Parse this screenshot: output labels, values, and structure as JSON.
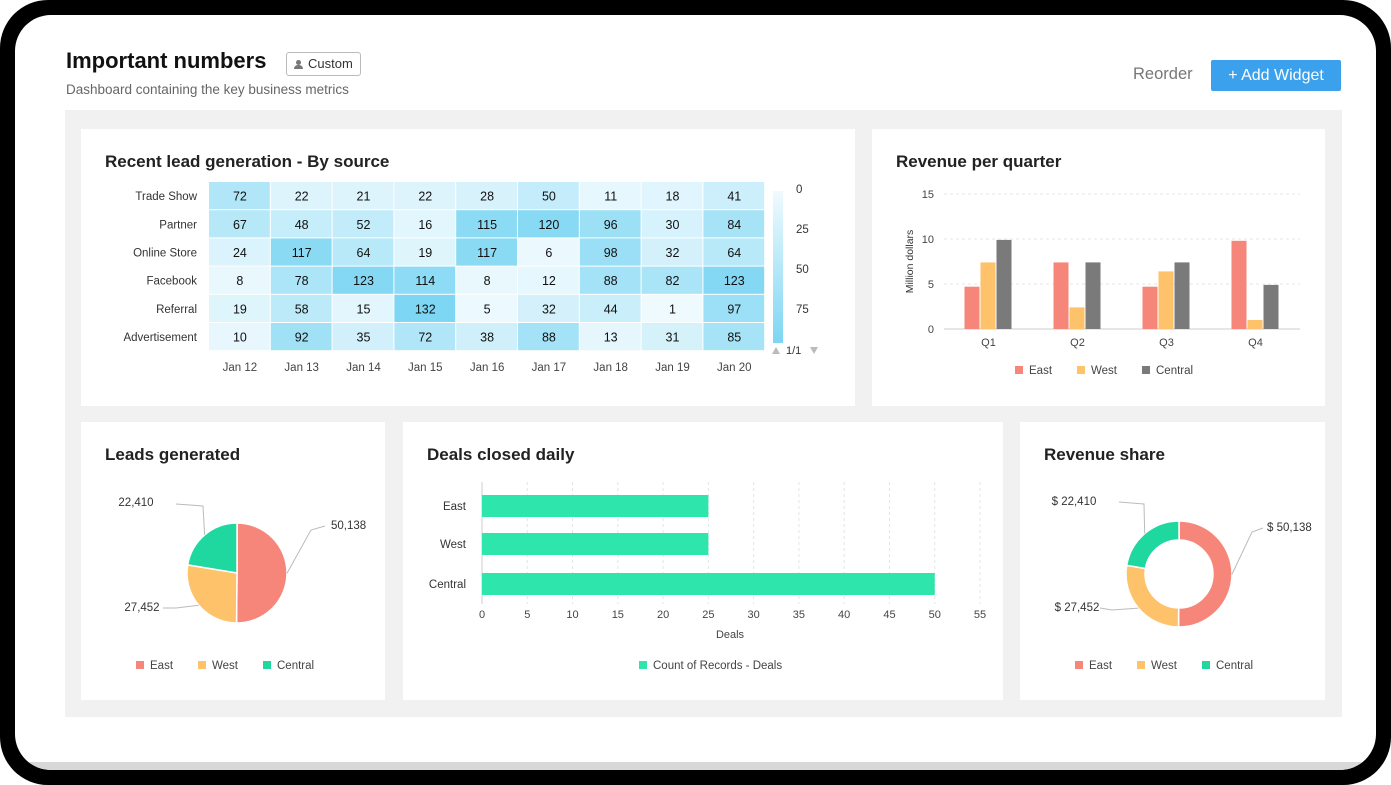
{
  "header": {
    "title": "Important numbers",
    "badge": "Custom",
    "subtitle": "Dashboard containing the key business metrics",
    "reorder_label": "Reorder",
    "add_widget_label": "+ Add Widget"
  },
  "colors": {
    "east": "#f7867a",
    "west": "#fdc26a",
    "central": "#1fd8a0",
    "central_bar_quarter": "#7a7a7a",
    "deals_bar": "#2ee5ab",
    "heat_high": "#7dd6f3",
    "heat_low": "#f0fafe",
    "accent": "#3ba1ec"
  },
  "widgets": {
    "heatmap": {
      "title": "Recent lead generation - By source",
      "rows": [
        "Trade Show",
        "Partner",
        "Online Store",
        "Facebook",
        "Referral",
        "Advertisement"
      ],
      "cols": [
        "Jan 12",
        "Jan 13",
        "Jan 14",
        "Jan 15",
        "Jan 16",
        "Jan 17",
        "Jan 18",
        "Jan 19",
        "Jan 20"
      ],
      "values": [
        [
          72,
          22,
          21,
          22,
          28,
          50,
          11,
          18,
          41
        ],
        [
          67,
          48,
          52,
          16,
          115,
          120,
          96,
          30,
          84
        ],
        [
          24,
          117,
          64,
          19,
          117,
          6,
          98,
          32,
          64
        ],
        [
          8,
          78,
          123,
          114,
          8,
          12,
          88,
          82,
          123
        ],
        [
          19,
          58,
          15,
          132,
          5,
          32,
          44,
          1,
          97
        ],
        [
          10,
          92,
          35,
          72,
          38,
          88,
          13,
          31,
          85
        ]
      ],
      "legend_ticks": [
        "0",
        "25",
        "50",
        "75"
      ],
      "pager": "1/1"
    },
    "revenue_quarter": {
      "title": "Revenue per quarter",
      "ylabel": "Million dollars",
      "yticks": [
        0,
        5,
        10,
        15
      ],
      "legend": [
        "East",
        "West",
        "Central"
      ]
    },
    "leads_pie": {
      "title": "Leads generated",
      "labels": [
        "50,138",
        "27,452",
        "22,410"
      ],
      "legend": [
        "East",
        "West",
        "Central"
      ]
    },
    "deals_bar": {
      "title": "Deals closed daily",
      "xlabel": "Deals",
      "xticks": [
        0,
        5,
        10,
        15,
        20,
        25,
        30,
        35,
        40,
        45,
        50,
        55
      ],
      "legend": "Count of Records - Deals"
    },
    "revenue_share": {
      "title": "Revenue share",
      "labels": [
        "$ 50,138",
        "$ 27,452",
        "$ 22,410"
      ],
      "legend": [
        "East",
        "West",
        "Central"
      ]
    }
  },
  "chart_data": [
    {
      "type": "heatmap",
      "title": "Recent lead generation - By source",
      "rows": [
        "Trade Show",
        "Partner",
        "Online Store",
        "Facebook",
        "Referral",
        "Advertisement"
      ],
      "cols": [
        "Jan 12",
        "Jan 13",
        "Jan 14",
        "Jan 15",
        "Jan 16",
        "Jan 17",
        "Jan 18",
        "Jan 19",
        "Jan 20"
      ],
      "values": [
        [
          72,
          22,
          21,
          22,
          28,
          50,
          11,
          18,
          41
        ],
        [
          67,
          48,
          52,
          16,
          115,
          120,
          96,
          30,
          84
        ],
        [
          24,
          117,
          64,
          19,
          117,
          6,
          98,
          32,
          64
        ],
        [
          8,
          78,
          123,
          114,
          8,
          12,
          88,
          82,
          123
        ],
        [
          19,
          58,
          15,
          132,
          5,
          32,
          44,
          1,
          97
        ],
        [
          10,
          92,
          35,
          72,
          38,
          88,
          13,
          31,
          85
        ]
      ]
    },
    {
      "type": "bar",
      "title": "Revenue per quarter",
      "categories": [
        "Q1",
        "Q2",
        "Q3",
        "Q4"
      ],
      "series": [
        {
          "name": "East",
          "values": [
            4.7,
            7.4,
            4.7,
            9.8
          ]
        },
        {
          "name": "West",
          "values": [
            7.4,
            2.4,
            6.4,
            1.0
          ]
        },
        {
          "name": "Central",
          "values": [
            9.9,
            7.4,
            7.4,
            4.9
          ]
        }
      ],
      "ylabel": "Million dollars",
      "ylim": [
        0,
        15
      ],
      "grid": true,
      "legend": "bottom"
    },
    {
      "type": "pie",
      "title": "Leads generated",
      "categories": [
        "East",
        "West",
        "Central"
      ],
      "values": [
        50138,
        27452,
        22410
      ],
      "legend": "bottom"
    },
    {
      "type": "bar",
      "orientation": "horizontal",
      "title": "Deals closed daily",
      "categories": [
        "East",
        "West",
        "Central"
      ],
      "series": [
        {
          "name": "Count of Records - Deals",
          "values": [
            25,
            25,
            50
          ]
        }
      ],
      "xlabel": "Deals",
      "xlim": [
        0,
        55
      ],
      "grid": true,
      "legend": "bottom"
    },
    {
      "type": "pie",
      "variant": "donut",
      "title": "Revenue share",
      "categories": [
        "East",
        "West",
        "Central"
      ],
      "values": [
        50138,
        27452,
        22410
      ],
      "legend": "bottom"
    }
  ]
}
